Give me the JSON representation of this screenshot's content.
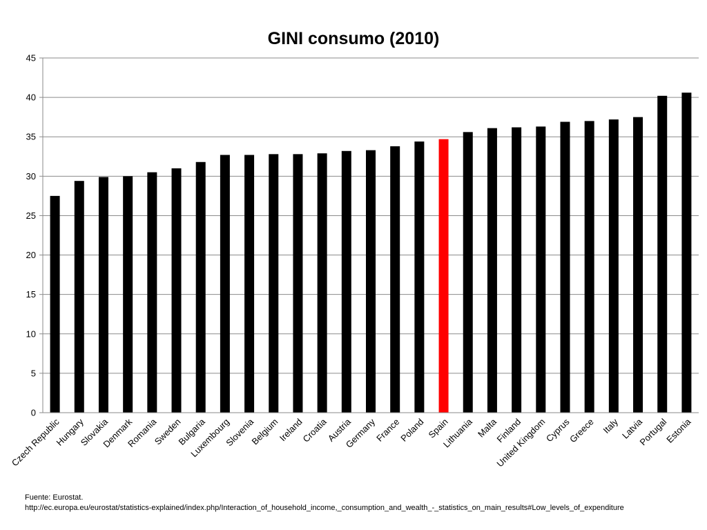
{
  "chart_data": {
    "type": "bar",
    "title": "GINI consumo (2010)",
    "xlabel": "",
    "ylabel": "",
    "ylim": [
      0,
      45
    ],
    "yticks": [
      0,
      5,
      10,
      15,
      20,
      25,
      30,
      35,
      40,
      45
    ],
    "grid": true,
    "legend": "none",
    "bar_color": "#000000",
    "highlight_color": "#ff0000",
    "highlight_category": "Spain",
    "categories": [
      "Czech Republic",
      "Hungary",
      "Slovakia",
      "Denmark",
      "Romania",
      "Sweden",
      "Bulgaria",
      "Luxembourg",
      "Slovenia",
      "Belgium",
      "Ireland",
      "Croatia",
      "Austria",
      "Germany",
      "France",
      "Poland",
      "Spain",
      "Lithuania",
      "Malta",
      "Finland",
      "United Kingdom",
      "Cyprus",
      "Greece",
      "Italy",
      "Latvia",
      "Portugal",
      "Estonia"
    ],
    "values": [
      27.5,
      29.4,
      29.9,
      30.0,
      30.5,
      31.0,
      31.8,
      32.7,
      32.7,
      32.8,
      32.8,
      32.9,
      33.2,
      33.3,
      33.8,
      34.4,
      34.7,
      35.6,
      36.1,
      36.2,
      36.3,
      36.9,
      37.0,
      37.2,
      37.5,
      40.2,
      40.6
    ]
  },
  "source": {
    "line1": "Fuente: Eurostat.",
    "line2": "http://ec.europa.eu/eurostat/statistics-explained/index.php/Interaction_of_household_income,_consumption_and_wealth_-_statistics_on_main_results#Low_levels_of_expenditure"
  }
}
